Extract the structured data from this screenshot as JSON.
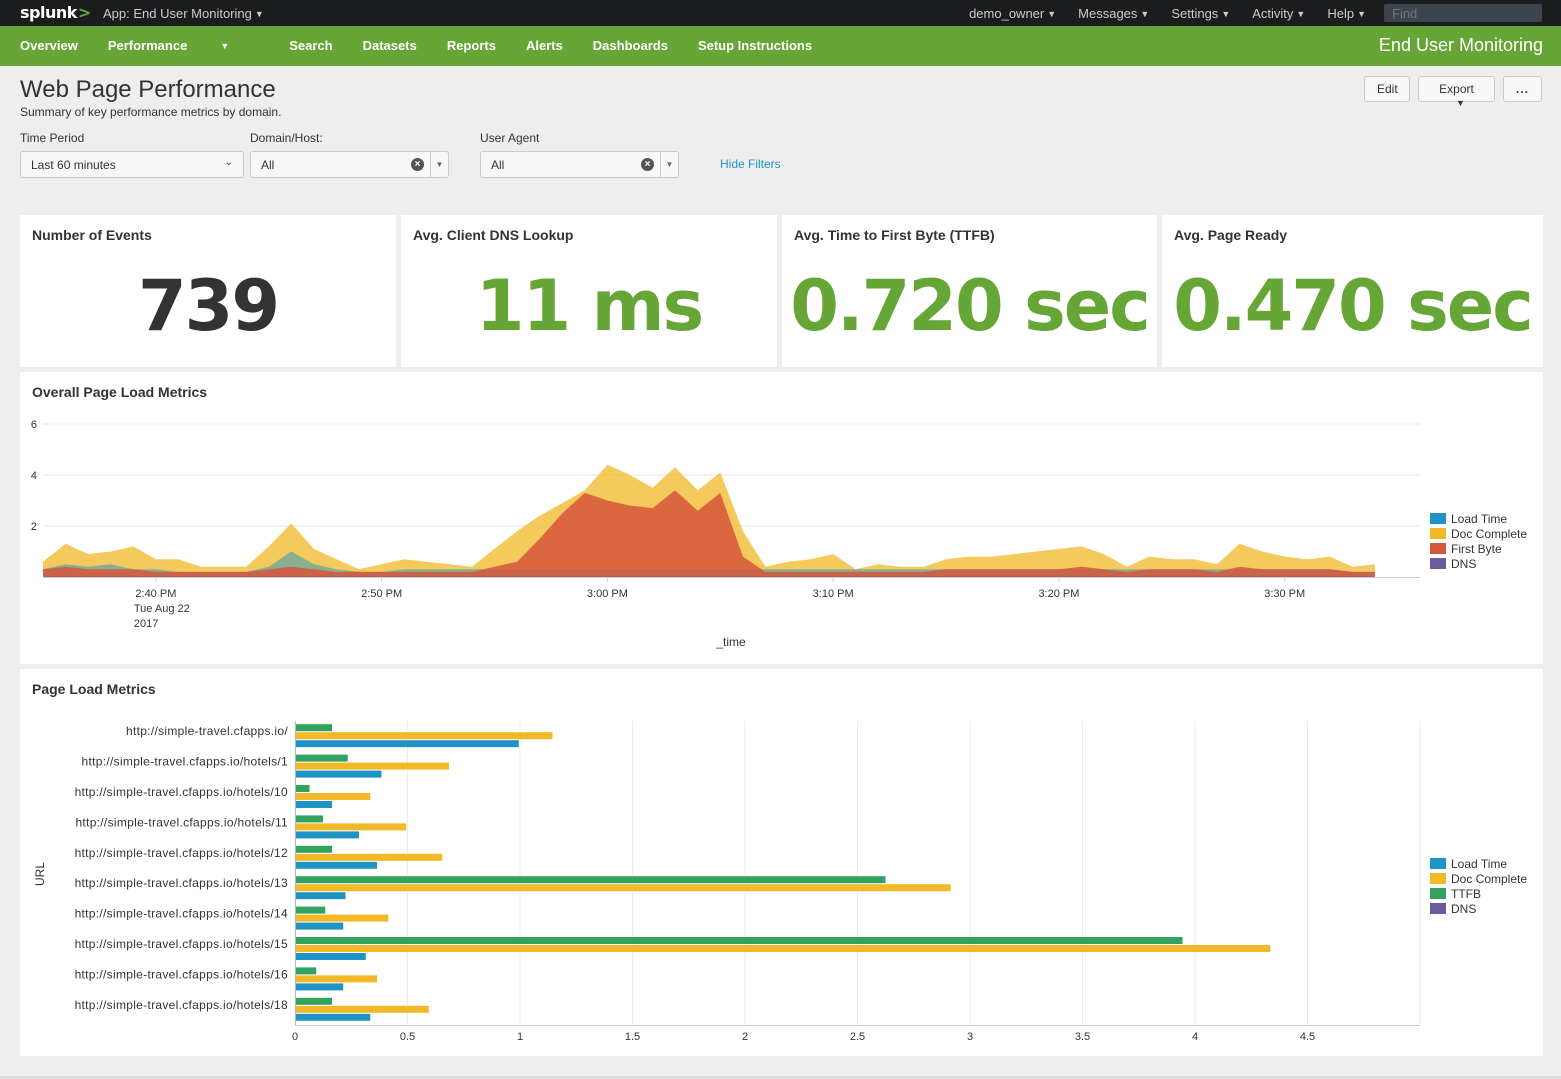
{
  "topbar": {
    "logo": "splunk",
    "logo_mark": ">",
    "app_label": "App: End User Monitoring",
    "menus": [
      "demo_owner",
      "Messages",
      "Settings",
      "Activity",
      "Help"
    ],
    "find_placeholder": "Find"
  },
  "nav": {
    "items": [
      "Overview",
      "Performance",
      "Search",
      "Datasets",
      "Reports",
      "Alerts",
      "Dashboards",
      "Setup Instructions"
    ],
    "app_title": "End User Monitoring"
  },
  "header": {
    "title": "Web Page Performance",
    "subtitle": "Summary of key performance metrics by domain.",
    "edit_label": "Edit",
    "export_label": "Export",
    "more_label": "..."
  },
  "filters": {
    "time_label": "Time Period",
    "time_value": "Last 60 minutes",
    "domain_label": "Domain/Host:",
    "domain_value": "All",
    "agent_label": "User Agent",
    "agent_value": "All",
    "hide_label": "Hide Filters"
  },
  "singles": [
    {
      "title": "Number of Events",
      "value": "739",
      "color": "#333333"
    },
    {
      "title": "Avg. Client DNS Lookup",
      "value": "11 ms",
      "color": "#65a637"
    },
    {
      "title": "Avg. Time to First Byte (TTFB)",
      "value": "0.720 sec",
      "color": "#65a637"
    },
    {
      "title": "Avg. Page Ready",
      "value": "0.470 sec",
      "color": "#65a637"
    }
  ],
  "colors": {
    "load_time": "#1e93c6",
    "doc_complete": "#f2b827",
    "first_byte": "#d6563c",
    "ttfb": "#31a35f",
    "dns": "#6a5c9e"
  },
  "chart_data": [
    {
      "type": "area",
      "title": "Overall Page Load Metrics",
      "xlabel": "_time",
      "ylabel": "",
      "ylim": [
        0,
        6
      ],
      "yticks": [
        "2",
        "4",
        "6"
      ],
      "xticks": [
        {
          "time": "2:40 PM",
          "sub": [
            "Tue Aug 22",
            "2017"
          ]
        },
        {
          "time": "2:50 PM",
          "sub": []
        },
        {
          "time": "3:00 PM",
          "sub": []
        },
        {
          "time": "3:10 PM",
          "sub": []
        },
        {
          "time": "3:20 PM",
          "sub": []
        },
        {
          "time": "3:30 PM",
          "sub": []
        }
      ],
      "x": [
        "2:35",
        "2:36",
        "2:37",
        "2:38",
        "2:39",
        "2:40",
        "2:41",
        "2:42",
        "2:43",
        "2:44",
        "2:45",
        "2:46",
        "2:47",
        "2:48",
        "2:49",
        "2:50",
        "2:51",
        "2:52",
        "2:53",
        "2:54",
        "2:55",
        "2:56",
        "2:57",
        "2:58",
        "2:59",
        "3:00",
        "3:01",
        "3:02",
        "3:03",
        "3:04",
        "3:05",
        "3:06",
        "3:07",
        "3:08",
        "3:09",
        "3:10",
        "3:11",
        "3:12",
        "3:13",
        "3:14",
        "3:15",
        "3:16",
        "3:17",
        "3:18",
        "3:19",
        "3:20",
        "3:21",
        "3:22",
        "3:23",
        "3:24",
        "3:25",
        "3:26",
        "3:27",
        "3:28",
        "3:29",
        "3:30",
        "3:31",
        "3:32",
        "3:33",
        "3:34"
      ],
      "series": [
        {
          "name": "Load Time",
          "key": "load_time",
          "values": [
            0.3,
            0.5,
            0.4,
            0.5,
            0.3,
            0.3,
            0.2,
            0.2,
            0.2,
            0.2,
            0.4,
            1.0,
            0.5,
            0.3,
            0.2,
            0.2,
            0.3,
            0.3,
            0.3,
            0.3,
            0.3,
            0.3,
            0.3,
            0.3,
            0.3,
            0.3,
            0.3,
            0.3,
            0.3,
            0.3,
            0.3,
            0.3,
            0.3,
            0.3,
            0.3,
            0.3,
            0.3,
            0.3,
            0.3,
            0.3,
            0.3,
            0.3,
            0.3,
            0.3,
            0.3,
            0.3,
            0.3,
            0.3,
            0.3,
            0.3,
            0.3,
            0.3,
            0.3,
            0.3,
            0.3,
            0.3,
            0.3,
            0.3,
            0.2,
            0.2
          ]
        },
        {
          "name": "Doc Complete",
          "key": "doc_complete",
          "values": [
            0.6,
            1.3,
            0.9,
            1.0,
            1.2,
            0.7,
            0.7,
            0.4,
            0.4,
            0.4,
            1.2,
            2.1,
            1.1,
            0.7,
            0.3,
            0.5,
            0.7,
            0.6,
            0.5,
            0.4,
            1.1,
            1.8,
            2.4,
            2.9,
            3.4,
            4.4,
            4.0,
            3.5,
            4.3,
            3.4,
            4.1,
            1.8,
            0.4,
            0.6,
            0.7,
            0.9,
            0.3,
            0.5,
            0.4,
            0.4,
            0.7,
            0.8,
            0.8,
            0.9,
            1.0,
            1.1,
            1.2,
            0.9,
            0.4,
            0.8,
            0.7,
            0.7,
            0.5,
            1.3,
            1.0,
            0.8,
            0.7,
            0.8,
            0.4,
            0.5
          ]
        },
        {
          "name": "First Byte",
          "key": "first_byte",
          "values": [
            0.3,
            0.4,
            0.3,
            0.3,
            0.3,
            0.2,
            0.2,
            0.2,
            0.2,
            0.2,
            0.3,
            0.4,
            0.3,
            0.2,
            0.2,
            0.2,
            0.2,
            0.2,
            0.2,
            0.2,
            0.4,
            0.6,
            1.5,
            2.5,
            3.3,
            3.0,
            2.8,
            2.7,
            3.4,
            2.6,
            3.3,
            0.8,
            0.2,
            0.2,
            0.2,
            0.2,
            0.2,
            0.2,
            0.2,
            0.2,
            0.3,
            0.3,
            0.3,
            0.3,
            0.3,
            0.3,
            0.4,
            0.3,
            0.2,
            0.3,
            0.3,
            0.3,
            0.2,
            0.4,
            0.3,
            0.3,
            0.3,
            0.3,
            0.2,
            0.2
          ]
        },
        {
          "name": "DNS",
          "key": "dns",
          "values": [
            0.01,
            0.01,
            0.01,
            0.01,
            0.01,
            0.01,
            0.01,
            0.01,
            0.01,
            0.01,
            0.01,
            0.01,
            0.01,
            0.01,
            0.01,
            0.01,
            0.01,
            0.01,
            0.01,
            0.01,
            0.01,
            0.01,
            0.01,
            0.01,
            0.01,
            0.01,
            0.01,
            0.01,
            0.01,
            0.01,
            0.01,
            0.01,
            0.01,
            0.01,
            0.01,
            0.01,
            0.01,
            0.01,
            0.01,
            0.01,
            0.01,
            0.01,
            0.01,
            0.01,
            0.01,
            0.01,
            0.01,
            0.01,
            0.01,
            0.01,
            0.01,
            0.01,
            0.01,
            0.01,
            0.01,
            0.01,
            0.01,
            0.01,
            0.01,
            0.01
          ]
        }
      ],
      "legend_position": "right"
    },
    {
      "type": "bar",
      "orientation": "horizontal",
      "title": "Page Load Metrics",
      "ylabel": "URL",
      "xlabel": "",
      "xlim": [
        0,
        5
      ],
      "xticks": [
        "0",
        "0.5",
        "1",
        "1.5",
        "2",
        "2.5",
        "3",
        "3.5",
        "4",
        "4.5"
      ],
      "categories": [
        "http://simple-travel.cfapps.io/",
        "http://simple-travel.cfapps.io/hotels/1",
        "http://simple-travel.cfapps.io/hotels/10",
        "http://simple-travel.cfapps.io/hotels/11",
        "http://simple-travel.cfapps.io/hotels/12",
        "http://simple-travel.cfapps.io/hotels/13",
        "http://simple-travel.cfapps.io/hotels/14",
        "http://simple-travel.cfapps.io/hotels/15",
        "http://simple-travel.cfapps.io/hotels/16",
        "http://simple-travel.cfapps.io/hotels/18"
      ],
      "series": [
        {
          "name": "Load Time",
          "key": "load_time",
          "values": [
            0.99,
            0.38,
            0.16,
            0.28,
            0.36,
            0.22,
            0.21,
            0.31,
            0.21,
            0.33
          ]
        },
        {
          "name": "Doc Complete",
          "key": "doc_complete",
          "values": [
            1.14,
            0.68,
            0.33,
            0.49,
            0.65,
            2.91,
            0.41,
            4.33,
            0.36,
            0.59
          ]
        },
        {
          "name": "TTFB",
          "key": "ttfb",
          "values": [
            0.16,
            0.23,
            0.06,
            0.12,
            0.16,
            2.62,
            0.13,
            3.94,
            0.09,
            0.16
          ]
        },
        {
          "name": "DNS",
          "key": "dns",
          "values": [
            0,
            0,
            0,
            0,
            0,
            0,
            0,
            0,
            0,
            0
          ]
        }
      ],
      "legend_position": "right"
    }
  ]
}
